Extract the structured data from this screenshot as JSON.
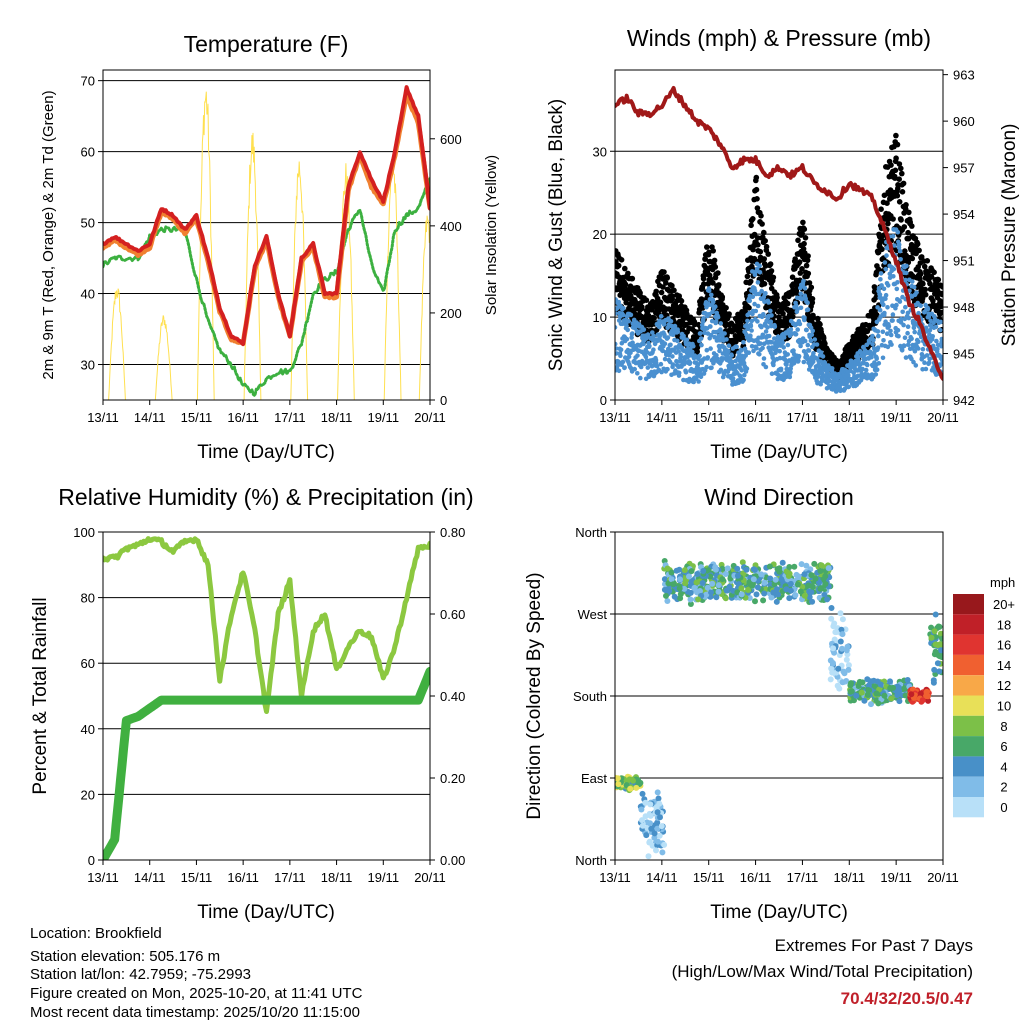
{
  "colors": {
    "temp2m": "#d42020",
    "temp9m": "#f08030",
    "dewpoint": "#3cb040",
    "solar": "#ffe050",
    "wind": "#4a90d0",
    "gust": "#000000",
    "pressure": "#a01818",
    "rh": "#8cc840",
    "precip": "#40b040",
    "extremes": "#c0202a"
  },
  "info": {
    "location": "Location: Brookfield",
    "elevation": "Station elevation: 505.176 m",
    "latlon": "Station lat/lon: 42.7959; -75.2993",
    "created": "Figure created on Mon, 2025-10-20, at 11:41 UTC",
    "recent": "Most recent data timestamp: 2025/10/20 11:15:00"
  },
  "extremes": {
    "title": "Extremes For Past 7 Days",
    "subtitle": "(High/Low/Max Wind/Total Precipitation)",
    "values": "70.4/32/20.5/0.47"
  },
  "chart_data": [
    {
      "type": "line",
      "title": "Temperature (F)",
      "xlabel": "Time (Day/UTC)",
      "ylabel": "2m & 9m T (Red, Orange) & 2m Td (Green)",
      "y2label": "Solar Insolation (Yellow)",
      "xticks": [
        "13/11",
        "14/11",
        "15/11",
        "16/11",
        "17/11",
        "18/11",
        "19/11",
        "20/11"
      ],
      "ylim": [
        25,
        71.5
      ],
      "yticks": [
        30,
        40,
        50,
        60,
        70
      ],
      "y2lim": [
        0,
        758
      ],
      "y2ticks": [
        0,
        200,
        400,
        600
      ],
      "step_hours": 6,
      "series": [
        {
          "name": "2m T",
          "values": [
            47,
            48,
            47,
            46,
            47,
            52,
            51,
            49,
            51,
            45,
            38,
            34,
            33,
            44,
            48,
            40,
            34,
            45,
            47,
            40,
            40,
            55,
            60,
            56,
            53,
            60,
            69,
            65,
            52
          ]
        },
        {
          "name": "9m T",
          "values": [
            46.5,
            47.5,
            46.5,
            45.5,
            46.5,
            51.5,
            50.5,
            48.5,
            50.5,
            44.5,
            37.5,
            33.5,
            33,
            43.5,
            47.5,
            39.5,
            34,
            44.5,
            46.5,
            39.5,
            39.5,
            54.5,
            59.5,
            55,
            52.5,
            59.5,
            68,
            64,
            52
          ]
        },
        {
          "name": "2m Td",
          "values": [
            44,
            45,
            45,
            45,
            48,
            49,
            49,
            49,
            42,
            36,
            32,
            30,
            27,
            26,
            28,
            29,
            29,
            33,
            40,
            42,
            43,
            49,
            52,
            44,
            40,
            49,
            51,
            52,
            56
          ]
        }
      ],
      "solar_peaks": [
        {
          "day": 0.3,
          "value": 270
        },
        {
          "day": 1.3,
          "value": 200
        },
        {
          "day": 2.2,
          "value": 750
        },
        {
          "day": 3.2,
          "value": 630
        },
        {
          "day": 4.2,
          "value": 575
        },
        {
          "day": 5.2,
          "value": 550
        },
        {
          "day": 6.2,
          "value": 580
        },
        {
          "day": 6.95,
          "value": 440
        }
      ]
    },
    {
      "type": "scatter",
      "title": "Winds (mph) & Pressure (mb)",
      "xlabel": "Time (Day/UTC)",
      "ylabel": "Sonic Wind & Gust (Blue, Black)",
      "y2label": "Station Pressure (Maroon)",
      "xticks": [
        "13/11",
        "14/11",
        "15/11",
        "16/11",
        "17/11",
        "18/11",
        "19/11",
        "20/11"
      ],
      "ylim": [
        0,
        39.8
      ],
      "yticks": [
        0,
        10,
        20,
        30
      ],
      "y2lim": [
        942,
        963.3
      ],
      "y2ticks": [
        942,
        945,
        948,
        951,
        954,
        957,
        960,
        963
      ],
      "step_hours": 6,
      "wind_mean": [
        8,
        7,
        6,
        5,
        7,
        6,
        5,
        4,
        9,
        6,
        4,
        5,
        12,
        8,
        5,
        6,
        10,
        5,
        3,
        2,
        3,
        4,
        5,
        12,
        14,
        10,
        8,
        7,
        6
      ],
      "pressure": [
        961,
        961.5,
        960.5,
        960.5,
        961,
        962,
        961,
        960,
        959.5,
        958.5,
        957,
        957.5,
        957.5,
        956.5,
        957,
        956.5,
        957,
        956,
        955.5,
        955,
        956,
        955.5,
        955,
        953,
        951,
        948.5,
        947,
        945,
        943.5
      ]
    },
    {
      "type": "line",
      "title": "Relative Humidity (%) & Precipitation (in)",
      "xlabel": "Time (Day/UTC)",
      "ylabel": "Percent & Total Rainfall",
      "xticks": [
        "13/11",
        "14/11",
        "15/11",
        "16/11",
        "17/11",
        "18/11",
        "19/11",
        "20/11"
      ],
      "ylim": [
        0,
        100
      ],
      "yticks": [
        0,
        20,
        40,
        60,
        80,
        100
      ],
      "y2lim": [
        0,
        0.8
      ],
      "y2ticks": [
        "0.00",
        "0.20",
        "0.40",
        "0.60",
        "0.80"
      ],
      "step_hours": 6,
      "series": [
        {
          "name": "RH",
          "values": [
            92,
            92,
            95,
            96,
            98,
            97,
            94,
            97,
            98,
            90,
            55,
            75,
            88,
            70,
            45,
            75,
            85,
            50,
            70,
            75,
            58,
            65,
            70,
            68,
            55,
            65,
            80,
            95,
            96
          ]
        },
        {
          "name": "Precip",
          "values": [
            0,
            0.05,
            0.34,
            0.35,
            0.37,
            0.39,
            0.39,
            0.39,
            0.39,
            0.39,
            0.39,
            0.39,
            0.39,
            0.39,
            0.39,
            0.39,
            0.39,
            0.39,
            0.39,
            0.39,
            0.39,
            0.39,
            0.39,
            0.39,
            0.39,
            0.39,
            0.39,
            0.39,
            0.46
          ]
        }
      ]
    },
    {
      "type": "scatter",
      "title": "Wind Direction",
      "xlabel": "Time (Day/UTC)",
      "ylabel": "Direction (Colored By Speed)",
      "xticks": [
        "13/11",
        "14/11",
        "15/11",
        "16/11",
        "17/11",
        "18/11",
        "19/11",
        "20/11"
      ],
      "ylim": [
        0,
        360
      ],
      "yticks": [
        "North",
        "East",
        "South",
        "West",
        "North"
      ],
      "legend": {
        "title": "mph",
        "labels": [
          "20+",
          "18",
          "16",
          "14",
          "12",
          "10",
          "8",
          "6",
          "4",
          "2",
          "0"
        ],
        "colors": [
          "#98181c",
          "#c02028",
          "#e03430",
          "#f06030",
          "#f8a848",
          "#e8e058",
          "#7cc048",
          "#48a868",
          "#4890c8",
          "#80bce8",
          "#b8e0f8"
        ]
      },
      "segments": [
        {
          "from": 0,
          "to": 0.55,
          "dir": 85,
          "spread": 10,
          "speed": 8
        },
        {
          "from": 0.55,
          "to": 1.05,
          "dir": 40,
          "spread": 40,
          "speed": 3
        },
        {
          "from": 1.05,
          "to": 4.6,
          "dir": 305,
          "spread": 25,
          "speed": 6
        },
        {
          "from": 4.6,
          "to": 5.0,
          "dir": 230,
          "spread": 60,
          "speed": 2
        },
        {
          "from": 5.0,
          "to": 6.3,
          "dir": 185,
          "spread": 15,
          "speed": 6
        },
        {
          "from": 6.3,
          "to": 6.7,
          "dir": 180,
          "spread": 8,
          "speed": 17
        },
        {
          "from": 6.7,
          "to": 7.0,
          "dir": 230,
          "spread": 45,
          "speed": 7
        }
      ]
    }
  ]
}
